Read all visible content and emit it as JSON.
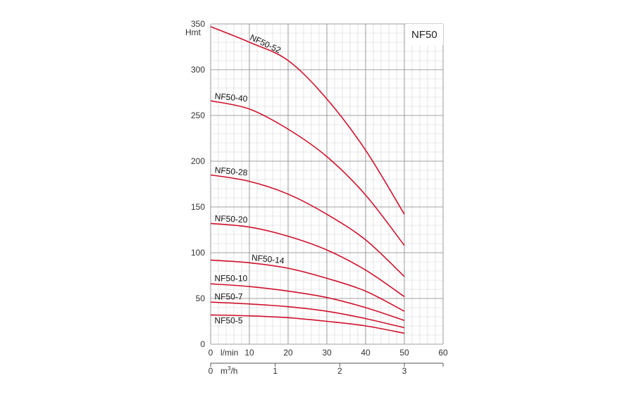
{
  "chart_data": {
    "type": "line",
    "title": "",
    "model_label": "NF50",
    "ylabel": "Hmt",
    "xlabel": "l/min",
    "x2label_prefix": "m",
    "x2label_sup": "3",
    "x2label_suffix": "/h",
    "xlim": [
      0,
      60
    ],
    "ylim": [
      0,
      350
    ],
    "x_ticks": [
      0,
      10,
      20,
      30,
      40,
      50,
      60
    ],
    "x_tick_labels": [
      "0",
      "10",
      "20",
      "30",
      "40",
      "50",
      "60"
    ],
    "y_ticks": [
      0,
      50,
      100,
      150,
      200,
      250,
      300,
      350
    ],
    "y_tick_labels": [
      "0",
      "50",
      "100",
      "150",
      "200",
      "250",
      "300",
      "350"
    ],
    "x2_ticks": [
      0,
      1,
      2,
      3
    ],
    "x2_tick_labels": [
      "0",
      "1",
      "2",
      "3"
    ],
    "grid": true,
    "minor_grid": true,
    "line_color": "#d0112b",
    "grid_color": "#888888",
    "minor_grid_color": "#d3d3d3",
    "series": [
      {
        "name": "NF50-52",
        "x": [
          0,
          10,
          20,
          30,
          40,
          50
        ],
        "y": [
          347,
          330,
          310,
          268,
          212,
          142
        ]
      },
      {
        "name": "NF50-40",
        "x": [
          0,
          10,
          20,
          30,
          40,
          50
        ],
        "y": [
          266,
          257,
          235,
          205,
          163,
          108
        ]
      },
      {
        "name": "NF50-28",
        "x": [
          0,
          10,
          20,
          30,
          40,
          50
        ],
        "y": [
          185,
          178,
          164,
          142,
          114,
          74
        ]
      },
      {
        "name": "NF50-20",
        "x": [
          0,
          10,
          20,
          30,
          40,
          50
        ],
        "y": [
          132,
          128,
          118,
          103,
          81,
          52
        ]
      },
      {
        "name": "NF50-14",
        "x": [
          0,
          10,
          20,
          30,
          40,
          50
        ],
        "y": [
          92,
          89,
          83,
          72,
          58,
          36
        ]
      },
      {
        "name": "NF50-10",
        "x": [
          0,
          10,
          20,
          30,
          40,
          50
        ],
        "y": [
          66,
          63,
          58,
          51,
          40,
          26
        ]
      },
      {
        "name": "NF50-7",
        "x": [
          0,
          10,
          20,
          30,
          40,
          50
        ],
        "y": [
          46,
          44,
          41,
          36,
          28,
          18
        ]
      },
      {
        "name": "NF50-5",
        "x": [
          0,
          10,
          20,
          30,
          40,
          50
        ],
        "y": [
          32,
          31,
          29,
          25,
          20,
          12
        ]
      }
    ]
  }
}
